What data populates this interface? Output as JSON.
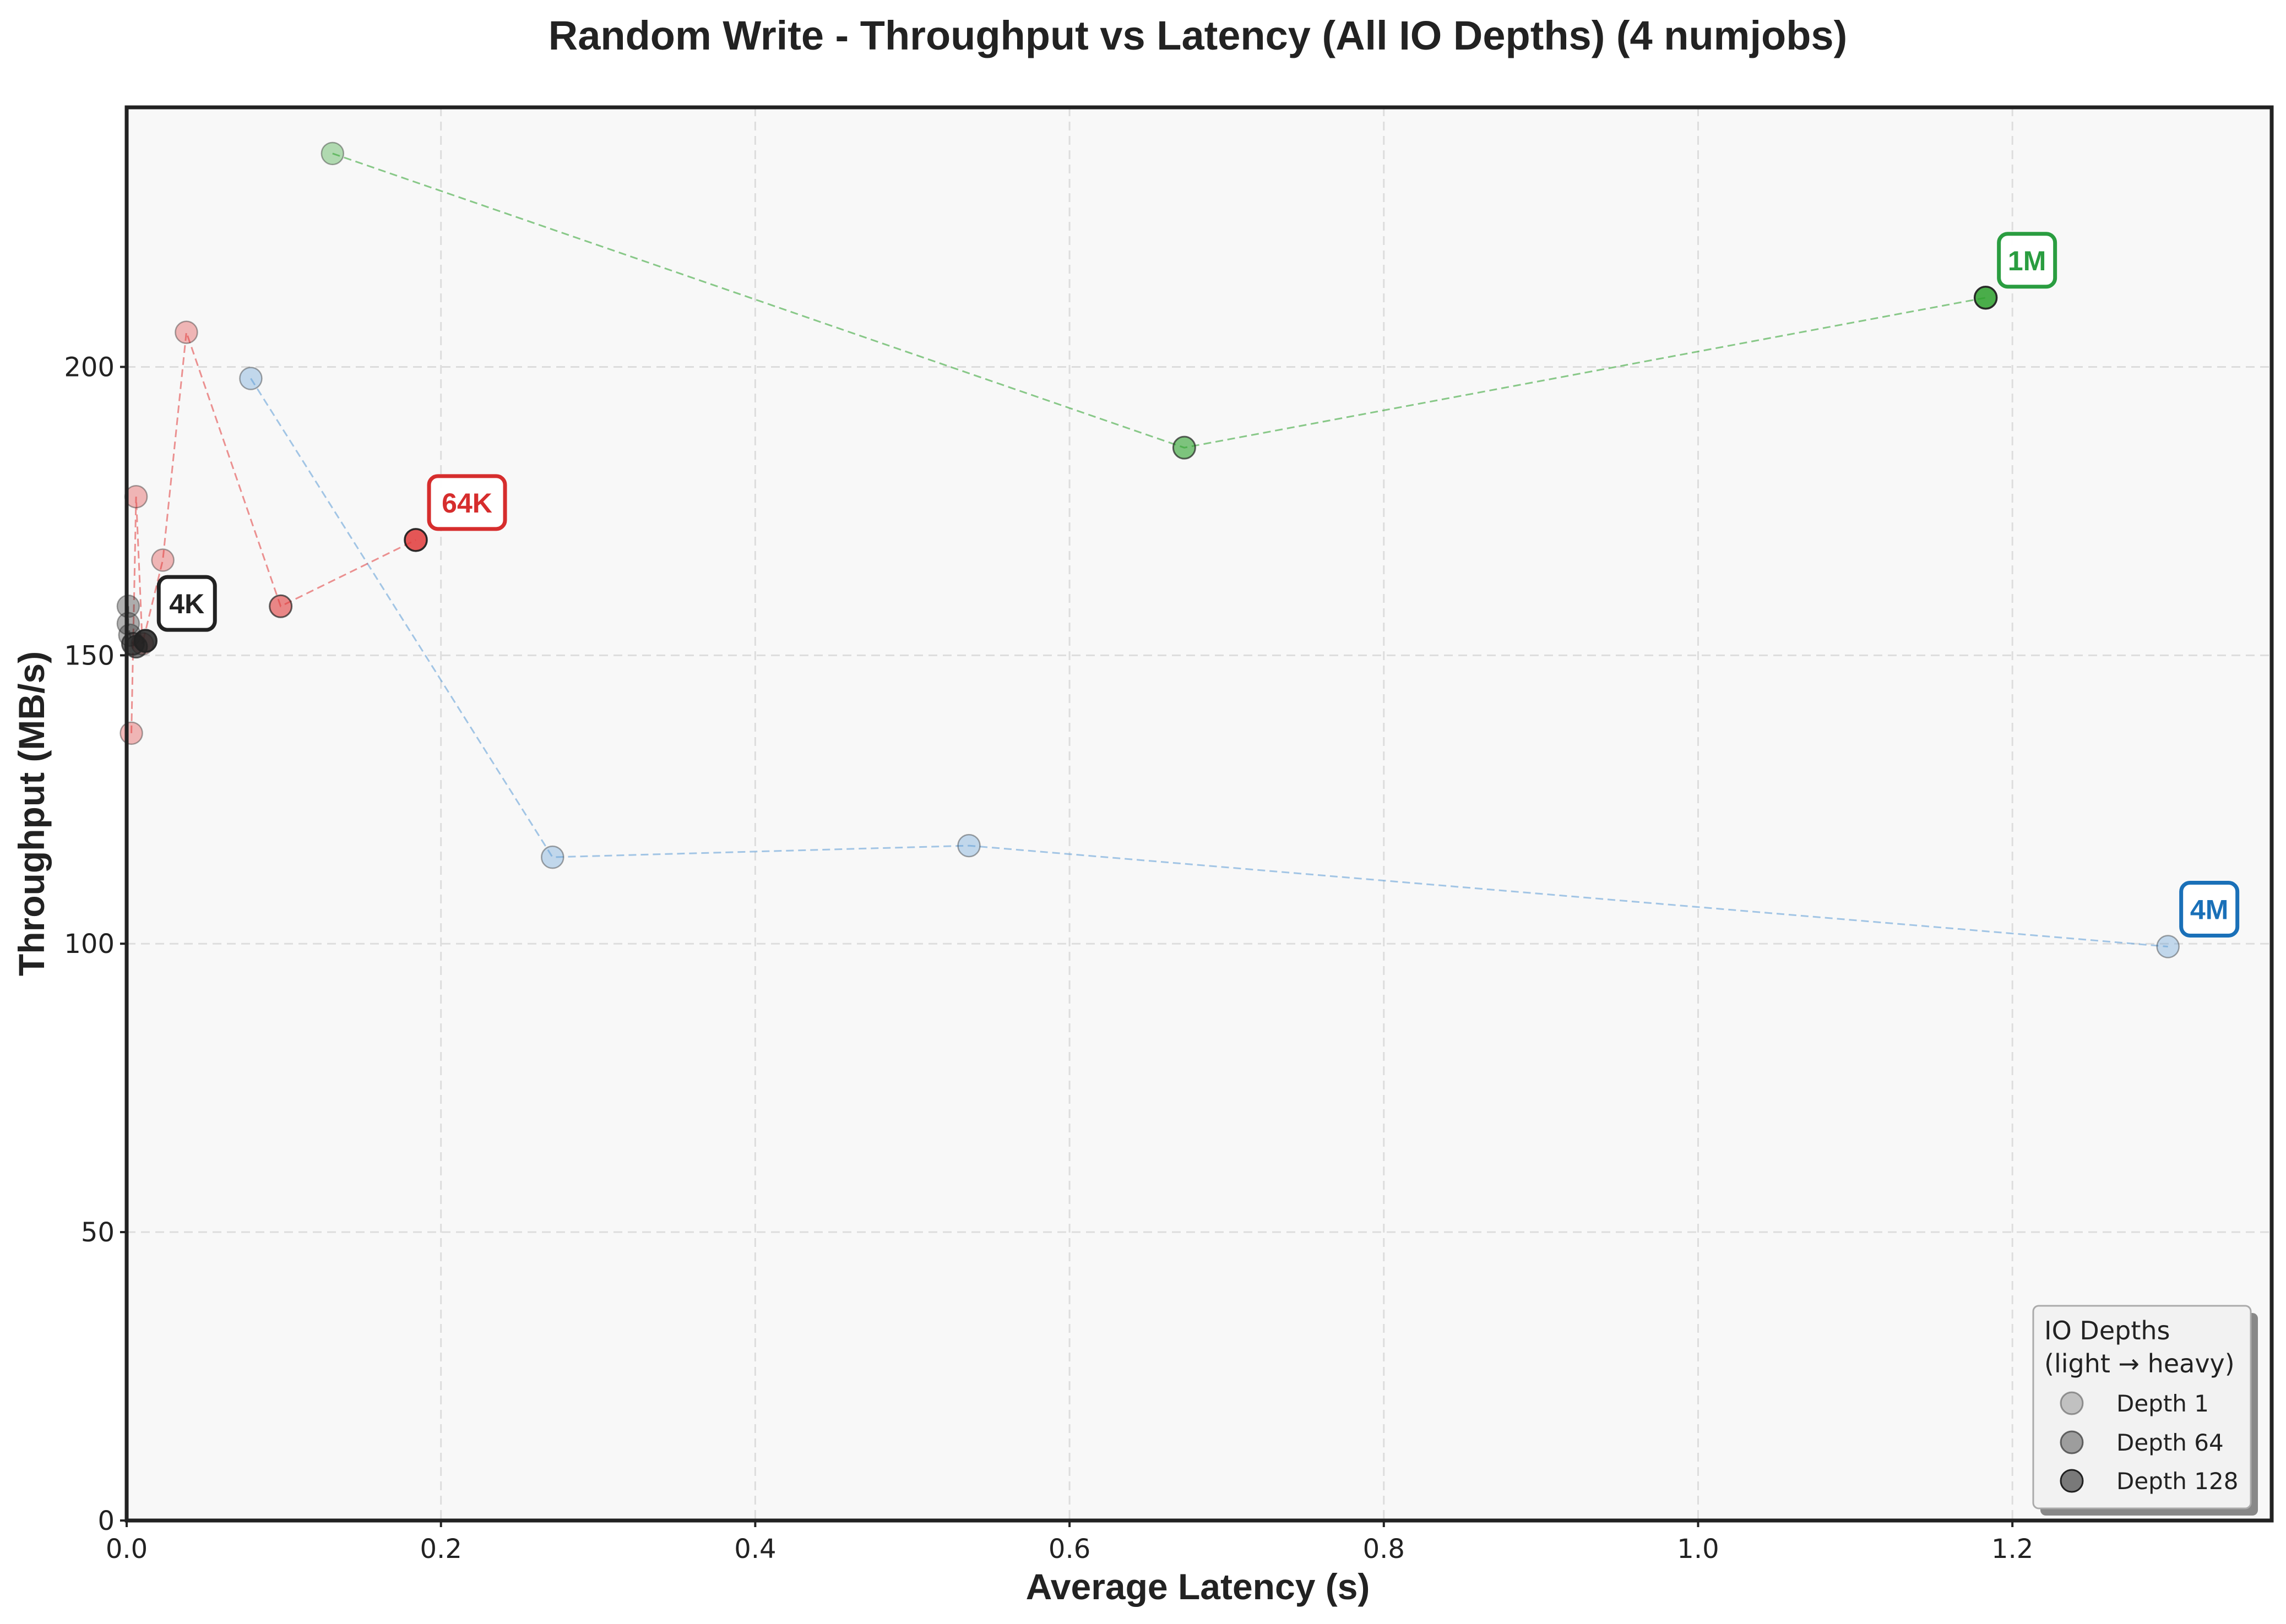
{
  "chart_data": {
    "type": "scatter",
    "title": "Random Write - Throughput vs Latency (All IO Depths) (4 numjobs)",
    "xlabel": "Average Latency (s)",
    "ylabel": "Throughput (MB/s)",
    "xlim": [
      0,
      1.365
    ],
    "ylim": [
      0,
      245
    ],
    "xticks": [
      "0.0",
      "0.2",
      "0.4",
      "0.6",
      "0.8",
      "1.0",
      "1.2"
    ],
    "yticks": [
      "0",
      "50",
      "100",
      "150",
      "200"
    ],
    "grid": true,
    "series": [
      {
        "name": "1M",
        "color": "#2ca02c",
        "label_color": "#2a9d40",
        "points": [
          {
            "x": 0.131,
            "y": 237.0,
            "depth": "light"
          },
          {
            "x": 0.673,
            "y": 186.0,
            "depth": "medium"
          },
          {
            "x": 1.183,
            "y": 212.0,
            "depth": "heavy"
          }
        ]
      },
      {
        "name": "4M",
        "color": "#5b9bd5",
        "label_color": "#1a70b8",
        "points": [
          {
            "x": 0.079,
            "y": 198.0,
            "depth": "light"
          },
          {
            "x": 0.271,
            "y": 115.0,
            "depth": "light"
          },
          {
            "x": 0.536,
            "y": 117.0,
            "depth": "light"
          },
          {
            "x": 1.299,
            "y": 99.5,
            "depth": "light"
          }
        ]
      },
      {
        "name": "64K",
        "color": "#e03a3a",
        "label_color": "#d62d2d",
        "points": [
          {
            "x": 0.003,
            "y": 136.5,
            "depth": "light"
          },
          {
            "x": 0.006,
            "y": 177.5,
            "depth": "light"
          },
          {
            "x": 0.01,
            "y": 152.0,
            "depth": "light"
          },
          {
            "x": 0.023,
            "y": 166.5,
            "depth": "light"
          },
          {
            "x": 0.038,
            "y": 206.0,
            "depth": "light"
          },
          {
            "x": 0.098,
            "y": 158.5,
            "depth": "medium"
          },
          {
            "x": 0.184,
            "y": 170.0,
            "depth": "heavy"
          }
        ]
      },
      {
        "name": "4K",
        "color": "#222222",
        "label_color": "#222222",
        "points": [
          {
            "x": 0.001,
            "y": 158.5,
            "depth": "light"
          },
          {
            "x": 0.001,
            "y": 155.5,
            "depth": "light"
          },
          {
            "x": 0.002,
            "y": 153.5,
            "depth": "light"
          },
          {
            "x": 0.004,
            "y": 152.0,
            "depth": "medium"
          },
          {
            "x": 0.006,
            "y": 151.5,
            "depth": "medium"
          },
          {
            "x": 0.012,
            "y": 152.5,
            "depth": "heavy"
          }
        ]
      }
    ],
    "legend": {
      "title_line1": "IO Depths",
      "title_line2": "(light → heavy)",
      "placement": "bottom-right",
      "entries": [
        {
          "label": "Depth 1",
          "depth": "light"
        },
        {
          "label": "Depth 64",
          "depth": "medium"
        },
        {
          "label": "Depth 128",
          "depth": "heavy"
        }
      ]
    }
  }
}
